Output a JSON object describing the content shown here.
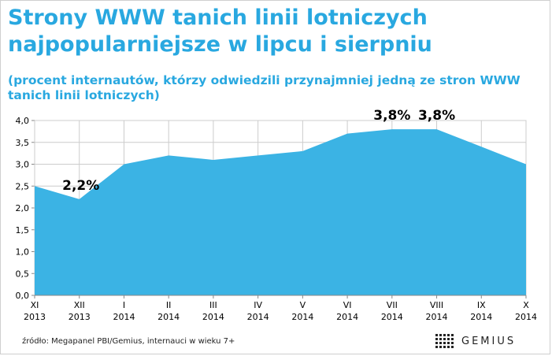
{
  "header": {
    "title_line1": "Strony WWW tanich linii lotniczych",
    "title_line2": "najpopularniejsze w lipcu i sierpniu",
    "subtitle_line1": "(procent internautów, którzy odwiedzili przynajmniej jedną ze stron WWW",
    "subtitle_line2": "tanich linii lotniczych)"
  },
  "footer": {
    "source": "źródło: Megapanel PBI/Gemius, internauci w wieku 7+",
    "logo_text": "GEMIUS"
  },
  "colors": {
    "accent": "#29a8e0",
    "area_fill": "#3bb3e4",
    "grid": "#cccccc",
    "text": "#000000"
  },
  "chart_data": {
    "type": "area",
    "categories": [
      [
        "XI",
        "2013"
      ],
      [
        "XII",
        "2013"
      ],
      [
        "I",
        "2014"
      ],
      [
        "II",
        "2014"
      ],
      [
        "III",
        "2014"
      ],
      [
        "IV",
        "2014"
      ],
      [
        "V",
        "2014"
      ],
      [
        "VI",
        "2014"
      ],
      [
        "VII",
        "2014"
      ],
      [
        "VIII",
        "2014"
      ],
      [
        "IX",
        "2014"
      ],
      [
        "X",
        "2014"
      ]
    ],
    "series": [
      {
        "values": [
          2.5,
          2.2,
          3.0,
          3.2,
          3.1,
          3.2,
          3.3,
          3.7,
          3.8,
          3.8,
          3.4,
          3.0
        ]
      }
    ],
    "ylim": [
      0,
      4.0
    ],
    "yticks": [
      "0,0",
      "0,5",
      "1,0",
      "1,5",
      "2,0",
      "2,5",
      "3,0",
      "3,5",
      "4,0"
    ],
    "grid": true,
    "annotations": [
      {
        "index": 1,
        "label": "2,2%"
      },
      {
        "index": 8,
        "label": "3,8%"
      },
      {
        "index": 9,
        "label": "3,8%"
      }
    ]
  }
}
